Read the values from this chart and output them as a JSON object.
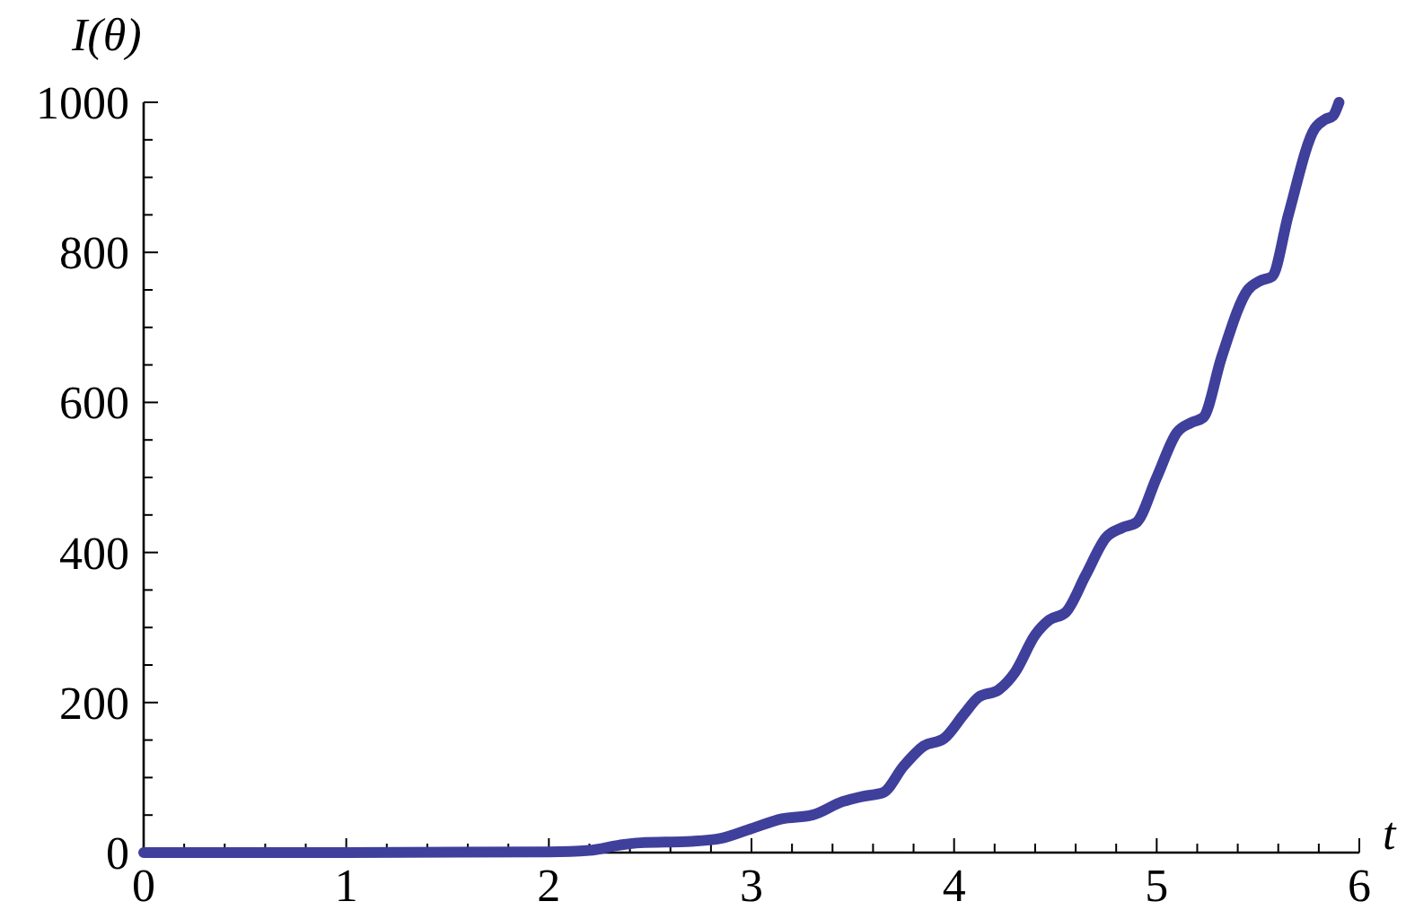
{
  "chart_data": {
    "type": "line",
    "xlabel": "t",
    "ylabel": "I(θ)",
    "x": [
      0,
      1,
      2,
      2.2,
      2.35,
      2.45,
      2.7,
      2.85,
      3.0,
      3.15,
      3.3,
      3.45,
      3.55,
      3.65,
      3.75,
      3.85,
      3.95,
      4.05,
      4.12,
      4.22,
      4.3,
      4.4,
      4.47,
      4.55,
      4.65,
      4.75,
      4.83,
      4.9,
      5.0,
      5.1,
      5.17,
      5.23,
      5.32,
      5.45,
      5.51,
      5.57,
      5.65,
      5.78,
      5.83,
      5.87,
      5.9
    ],
    "series": [
      {
        "color": "#3f3f9c",
        "values": [
          0,
          0,
          1,
          3,
          10,
          13,
          15,
          19,
          32,
          45,
          50,
          68,
          75,
          80,
          115,
          142,
          152,
          185,
          207,
          217,
          240,
          290,
          310,
          320,
          370,
          420,
          433,
          440,
          500,
          560,
          573,
          580,
          660,
          750,
          762,
          768,
          850,
          965,
          977,
          982,
          1000
        ]
      }
    ],
    "xlim": [
      0,
      6
    ],
    "ylim": [
      0,
      1000
    ],
    "xticks": [
      0,
      {
        "value": 0.2,
        "label": null
      },
      {
        "value": 0.4,
        "label": null
      },
      {
        "value": 0.6,
        "label": null
      },
      {
        "value": 0.8,
        "label": null
      },
      1,
      {
        "value": 1.2,
        "label": null
      },
      {
        "value": 1.4,
        "label": null
      },
      {
        "value": 1.6,
        "label": null
      },
      {
        "value": 1.8,
        "label": null
      },
      2,
      {
        "value": 2.2,
        "label": null
      },
      {
        "value": 2.4,
        "label": null
      },
      {
        "value": 2.6,
        "label": null
      },
      {
        "value": 2.8,
        "label": null
      },
      3,
      {
        "value": 3.2,
        "label": null
      },
      {
        "value": 3.4,
        "label": null
      },
      {
        "value": 3.6,
        "label": null
      },
      {
        "value": 3.8,
        "label": null
      },
      4,
      {
        "value": 4.2,
        "label": null
      },
      {
        "value": 4.4,
        "label": null
      },
      {
        "value": 4.6,
        "label": null
      },
      {
        "value": 4.8,
        "label": null
      },
      5,
      {
        "value": 5.2,
        "label": null
      },
      {
        "value": 5.4,
        "label": null
      },
      {
        "value": 5.6,
        "label": null
      },
      {
        "value": 5.8,
        "label": null
      },
      6
    ],
    "yticks": [
      0,
      {
        "value": 50,
        "label": null
      },
      {
        "value": 100,
        "label": null
      },
      {
        "value": 150,
        "label": null
      },
      200,
      {
        "value": 250,
        "label": null
      },
      {
        "value": 300,
        "label": null
      },
      {
        "value": 350,
        "label": null
      },
      400,
      {
        "value": 450,
        "label": null
      },
      {
        "value": 500,
        "label": null
      },
      {
        "value": 550,
        "label": null
      },
      600,
      {
        "value": 650,
        "label": null
      },
      {
        "value": 700,
        "label": null
      },
      {
        "value": 750,
        "label": null
      },
      800,
      {
        "value": 850,
        "label": null
      },
      {
        "value": 900,
        "label": null
      },
      {
        "value": 950,
        "label": null
      },
      1000
    ],
    "grid": false,
    "marker": "none",
    "line_style": "solid"
  }
}
